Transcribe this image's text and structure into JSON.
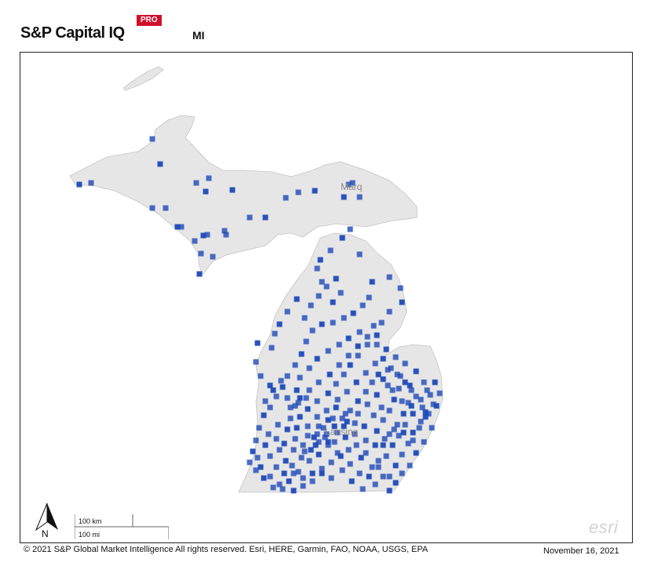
{
  "header": {
    "brand": "S&P Capital IQ",
    "badge": "PRO",
    "region": "MI"
  },
  "map": {
    "labels": {
      "city_north": "Marq",
      "city_central": "Lansing"
    },
    "scale": {
      "km_label": "100 km",
      "mi_label": "100 mi"
    },
    "north_label": "N",
    "watermark": "esri",
    "colors": {
      "land": "#e6e6e6",
      "marker": "#1e49b8",
      "coast": "#bdbdbd"
    },
    "icons": [
      "north-arrow-icon",
      "square-marker-icon"
    ]
  },
  "footer": {
    "attribution": "© 2021 S&P Global Market Intelligence All rights reserved. Esri, HERE, Garmin, FAO, NOAA, USGS, EPA",
    "date": "November 16, 2021"
  }
}
